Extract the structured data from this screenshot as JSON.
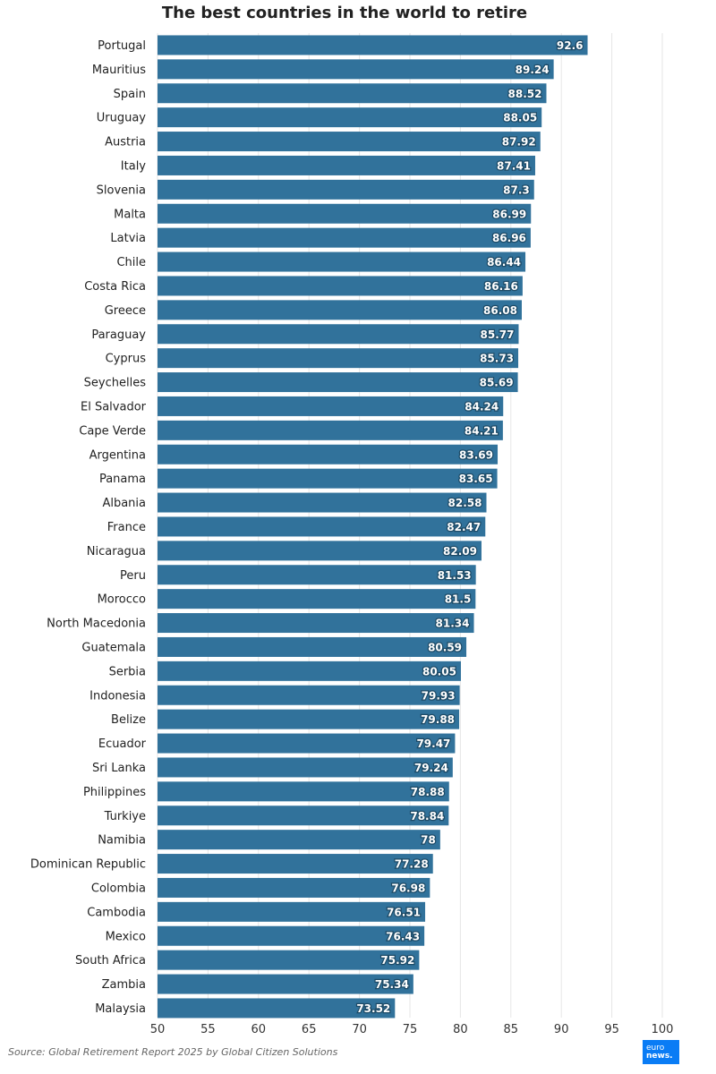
{
  "chart_data": {
    "type": "bar",
    "orientation": "horizontal",
    "title": "The best countries in the world to retire",
    "categories": [
      "Portugal",
      "Mauritius",
      "Spain",
      "Uruguay",
      "Austria",
      "Italy",
      "Slovenia",
      "Malta",
      "Latvia",
      "Chile",
      "Costa Rica",
      "Greece",
      "Paraguay",
      "Cyprus",
      "Seychelles",
      "El Salvador",
      "Cape Verde",
      "Argentina",
      "Panama",
      "Albania",
      "France",
      "Nicaragua",
      "Peru",
      "Morocco",
      "North Macedonia",
      "Guatemala",
      "Serbia",
      "Indonesia",
      "Belize",
      "Ecuador",
      "Sri Lanka",
      "Philippines",
      "Turkiye",
      "Namibia",
      "Dominican Republic",
      "Colombia",
      "Cambodia",
      "Mexico",
      "South Africa",
      "Zambia",
      "Malaysia"
    ],
    "values": [
      92.6,
      89.24,
      88.52,
      88.05,
      87.92,
      87.41,
      87.3,
      86.99,
      86.96,
      86.44,
      86.16,
      86.08,
      85.77,
      85.73,
      85.69,
      84.24,
      84.21,
      83.69,
      83.65,
      82.58,
      82.47,
      82.09,
      81.53,
      81.5,
      81.34,
      80.59,
      80.05,
      79.93,
      79.88,
      79.47,
      79.24,
      78.88,
      78.84,
      78,
      77.28,
      76.98,
      76.51,
      76.43,
      75.92,
      75.34,
      73.52
    ],
    "xlim": [
      50,
      100
    ],
    "xticks": [
      "50",
      "55",
      "60",
      "65",
      "70",
      "75",
      "80",
      "85",
      "90",
      "95",
      "100"
    ],
    "grid": true,
    "bar_color": "#31729b",
    "data_labels": true
  },
  "source": "Source: Global Retirement Report 2025 by Global Citizen Solutions",
  "logo": {
    "line1": "euro",
    "line2": "news."
  }
}
